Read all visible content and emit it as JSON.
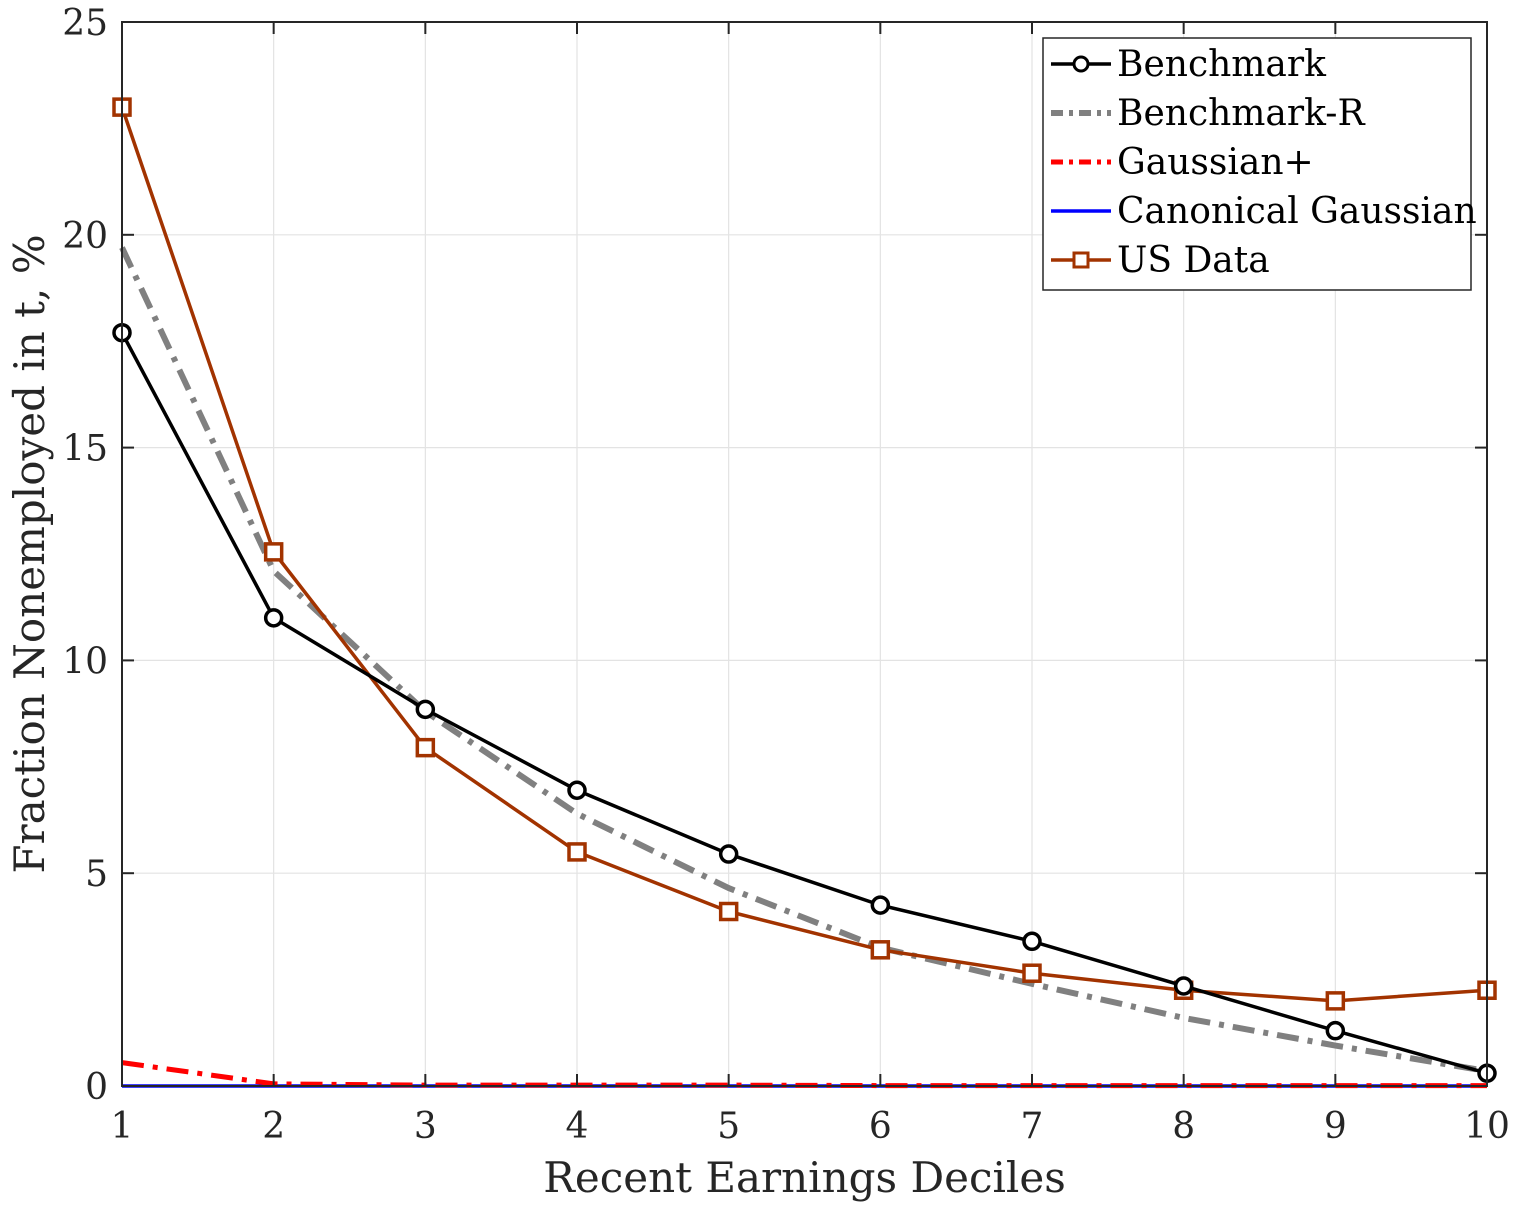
{
  "chart_data": {
    "type": "line",
    "xlabel": "Recent Earnings Deciles",
    "ylabel": "Fraction Nonemployed in t, %",
    "xlim": [
      1,
      10
    ],
    "ylim": [
      0,
      25
    ],
    "x": [
      1,
      2,
      3,
      4,
      5,
      6,
      7,
      8,
      9,
      10
    ],
    "xticks": [
      "1",
      "2",
      "3",
      "4",
      "5",
      "6",
      "7",
      "8",
      "9",
      "10"
    ],
    "yticks": [
      "0",
      "5",
      "10",
      "15",
      "20",
      "25"
    ],
    "grid": true,
    "legend_position": "top-right",
    "series": [
      {
        "name": "Benchmark",
        "color": "#000000",
        "style": "solid",
        "marker": "circle",
        "values": [
          17.7,
          11.0,
          8.85,
          6.95,
          5.45,
          4.25,
          3.4,
          2.35,
          1.3,
          0.3
        ]
      },
      {
        "name": "Benchmark-R",
        "color": "#808080",
        "style": "dash-dot",
        "marker": "none",
        "values": [
          19.7,
          12.1,
          8.8,
          6.4,
          4.65,
          3.25,
          2.4,
          1.6,
          0.95,
          0.35
        ]
      },
      {
        "name": "Gaussian+",
        "color": "#ff0000",
        "style": "dash-dot",
        "marker": "none",
        "values": [
          0.55,
          0.05,
          0.02,
          0.02,
          0.02,
          0.01,
          0.01,
          0.01,
          0.01,
          0.01
        ]
      },
      {
        "name": "Canonical Gaussian",
        "color": "#0000ff",
        "style": "solid",
        "marker": "none",
        "values": [
          0.0,
          0.0,
          0.0,
          0.0,
          0.0,
          0.0,
          0.0,
          0.0,
          0.0,
          0.0
        ]
      },
      {
        "name": "US Data",
        "color": "#a23300",
        "style": "solid",
        "marker": "square",
        "values": [
          23.0,
          12.55,
          7.95,
          5.5,
          4.1,
          3.2,
          2.65,
          2.25,
          2.0,
          2.25
        ]
      }
    ]
  }
}
